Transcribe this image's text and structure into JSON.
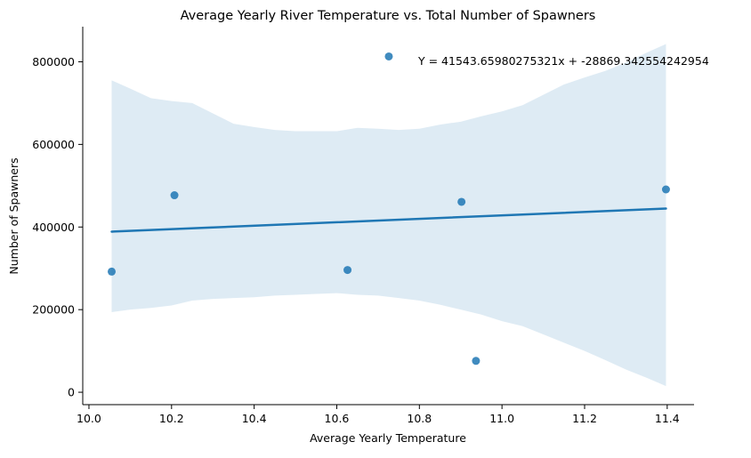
{
  "chart_data": {
    "type": "scatter",
    "title": "Average Yearly River Temperature vs. Total Number of Spawners",
    "xlabel": "Average Yearly Temperature",
    "ylabel": "Number of Spawners",
    "xlim": [
      9.985,
      11.465
    ],
    "ylim": [
      -30000,
      885000
    ],
    "x_ticks": [
      10.0,
      10.2,
      10.4,
      10.6,
      10.8,
      11.0,
      11.2,
      11.4
    ],
    "x_tick_labels": [
      "10.0",
      "10.2",
      "10.4",
      "10.6",
      "10.8",
      "11.0",
      "11.2",
      "11.4"
    ],
    "y_ticks": [
      0,
      200000,
      400000,
      600000,
      800000
    ],
    "y_tick_labels": [
      "0",
      "200000",
      "400000",
      "600000",
      "800000"
    ],
    "grid": false,
    "points": [
      {
        "x": 10.055,
        "y": 292000
      },
      {
        "x": 10.207,
        "y": 477000
      },
      {
        "x": 10.626,
        "y": 296000
      },
      {
        "x": 10.726,
        "y": 813000
      },
      {
        "x": 10.902,
        "y": 461000
      },
      {
        "x": 10.937,
        "y": 76000
      },
      {
        "x": 11.397,
        "y": 491000
      }
    ],
    "regression": {
      "slope": 41543.65980275321,
      "intercept": -28869.342554242954,
      "x_range": [
        10.055,
        11.397
      ]
    },
    "confidence_band": {
      "x": [
        10.055,
        10.1,
        10.15,
        10.2,
        10.25,
        10.3,
        10.35,
        10.4,
        10.45,
        10.5,
        10.55,
        10.6,
        10.65,
        10.7,
        10.75,
        10.8,
        10.85,
        10.9,
        10.95,
        11.0,
        11.05,
        11.1,
        11.15,
        11.2,
        11.25,
        11.3,
        11.35,
        11.397
      ],
      "upper": [
        755000,
        735000,
        712000,
        705000,
        700000,
        675000,
        650000,
        642000,
        635000,
        632000,
        632000,
        632000,
        640000,
        638000,
        635000,
        638000,
        648000,
        655000,
        668000,
        680000,
        695000,
        720000,
        745000,
        762000,
        778000,
        798000,
        822000,
        843000
      ],
      "lower": [
        194000,
        200000,
        204000,
        210000,
        222000,
        226000,
        228000,
        230000,
        234000,
        236000,
        238000,
        240000,
        236000,
        234000,
        228000,
        222000,
        212000,
        200000,
        188000,
        172000,
        160000,
        140000,
        120000,
        100000,
        78000,
        55000,
        35000,
        15000
      ]
    },
    "annotation": "Y = 41543.65980275321x + -28869.342554242954",
    "annotation_position": "top-right",
    "colors": {
      "points": "#1f77b4",
      "line": "#1f77b4",
      "band": "#1f77b4",
      "axis": "#000000"
    }
  }
}
